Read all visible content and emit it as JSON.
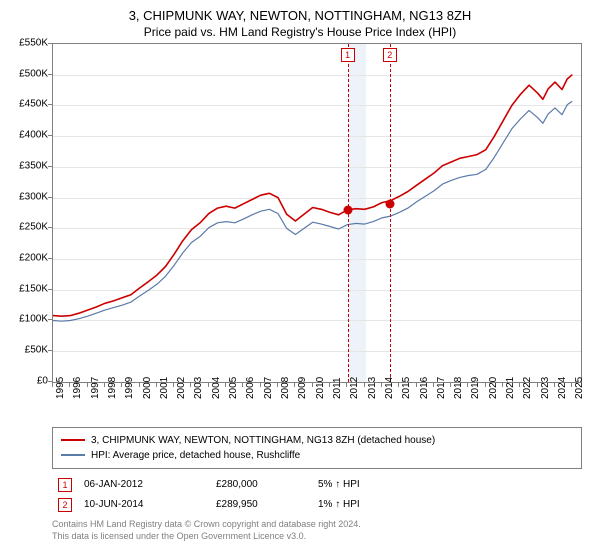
{
  "title": "3, CHIPMUNK WAY, NEWTON, NOTTINGHAM, NG13 8ZH",
  "subtitle": "Price paid vs. HM Land Registry's House Price Index (HPI)",
  "chart": {
    "type": "line",
    "background_color": "#ffffff",
    "grid_color": "#e6e6e6",
    "border_color": "#808080",
    "x": {
      "min": 1995,
      "max": 2025.5,
      "ticks": [
        1995,
        1996,
        1997,
        1998,
        1999,
        2000,
        2001,
        2002,
        2003,
        2004,
        2005,
        2006,
        2007,
        2008,
        2009,
        2010,
        2011,
        2012,
        2013,
        2014,
        2015,
        2016,
        2017,
        2018,
        2019,
        2020,
        2021,
        2022,
        2023,
        2024,
        2025
      ]
    },
    "y": {
      "min": 0,
      "max": 550000,
      "ticks": [
        0,
        50000,
        100000,
        150000,
        200000,
        250000,
        300000,
        350000,
        400000,
        450000,
        500000,
        550000
      ],
      "tick_labels": [
        "£0",
        "£50K",
        "£100K",
        "£150K",
        "£200K",
        "£250K",
        "£300K",
        "£350K",
        "£400K",
        "£450K",
        "£500K",
        "£550K"
      ]
    },
    "shaded_band": {
      "from": 2012.02,
      "to": 2013.1,
      "color": "#eef3fa"
    },
    "event_lines": [
      {
        "x": 2012.02,
        "label": "1",
        "color": "#cc0000"
      },
      {
        "x": 2014.45,
        "label": "2",
        "color": "#cc0000"
      }
    ],
    "markers": [
      {
        "x": 2012.02,
        "y": 280000,
        "color": "#cc0000"
      },
      {
        "x": 2014.45,
        "y": 289950,
        "color": "#cc0000"
      }
    ],
    "series": [
      {
        "name": "3, CHIPMUNK WAY, NEWTON, NOTTINGHAM, NG13 8ZH (detached house)",
        "color": "#cc0000",
        "width": 1.6,
        "points": [
          [
            1995,
            108000
          ],
          [
            1995.5,
            107000
          ],
          [
            1996,
            108000
          ],
          [
            1996.5,
            112000
          ],
          [
            1997,
            117000
          ],
          [
            1997.5,
            122000
          ],
          [
            1998,
            128000
          ],
          [
            1998.5,
            132000
          ],
          [
            1999,
            137000
          ],
          [
            1999.5,
            142000
          ],
          [
            2000,
            153000
          ],
          [
            2000.5,
            163000
          ],
          [
            2001,
            174000
          ],
          [
            2001.5,
            188000
          ],
          [
            2002,
            208000
          ],
          [
            2002.5,
            230000
          ],
          [
            2003,
            248000
          ],
          [
            2003.5,
            259000
          ],
          [
            2004,
            274000
          ],
          [
            2004.5,
            283000
          ],
          [
            2005,
            286000
          ],
          [
            2005.5,
            283000
          ],
          [
            2006,
            290000
          ],
          [
            2006.5,
            297000
          ],
          [
            2007,
            304000
          ],
          [
            2007.5,
            307000
          ],
          [
            2008,
            300000
          ],
          [
            2008.5,
            273000
          ],
          [
            2009,
            262000
          ],
          [
            2009.5,
            273000
          ],
          [
            2010,
            284000
          ],
          [
            2010.5,
            281000
          ],
          [
            2011,
            276000
          ],
          [
            2011.5,
            272000
          ],
          [
            2012,
            280000
          ],
          [
            2012.5,
            282000
          ],
          [
            2013,
            281000
          ],
          [
            2013.5,
            285000
          ],
          [
            2014,
            292000
          ],
          [
            2014.5,
            295000
          ],
          [
            2015,
            302000
          ],
          [
            2015.5,
            310000
          ],
          [
            2016,
            320000
          ],
          [
            2016.5,
            330000
          ],
          [
            2017,
            340000
          ],
          [
            2017.5,
            352000
          ],
          [
            2018,
            358000
          ],
          [
            2018.5,
            364000
          ],
          [
            2019,
            367000
          ],
          [
            2019.5,
            370000
          ],
          [
            2020,
            378000
          ],
          [
            2020.5,
            400000
          ],
          [
            2021,
            425000
          ],
          [
            2021.5,
            450000
          ],
          [
            2022,
            468000
          ],
          [
            2022.5,
            483000
          ],
          [
            2023,
            470000
          ],
          [
            2023.3,
            460000
          ],
          [
            2023.6,
            477000
          ],
          [
            2024,
            488000
          ],
          [
            2024.4,
            476000
          ],
          [
            2024.7,
            493000
          ],
          [
            2025,
            500000
          ]
        ]
      },
      {
        "name": "HPI: Average price, detached house, Rushcliffe",
        "color": "#5b7ba8",
        "width": 1.2,
        "points": [
          [
            1995,
            100000
          ],
          [
            1995.5,
            99000
          ],
          [
            1996,
            100000
          ],
          [
            1996.5,
            103000
          ],
          [
            1997,
            107000
          ],
          [
            1997.5,
            112000
          ],
          [
            1998,
            117000
          ],
          [
            1998.5,
            121000
          ],
          [
            1999,
            125000
          ],
          [
            1999.5,
            130000
          ],
          [
            2000,
            140000
          ],
          [
            2000.5,
            149000
          ],
          [
            2001,
            159000
          ],
          [
            2001.5,
            172000
          ],
          [
            2002,
            190000
          ],
          [
            2002.5,
            210000
          ],
          [
            2003,
            227000
          ],
          [
            2003.5,
            237000
          ],
          [
            2004,
            251000
          ],
          [
            2004.5,
            259000
          ],
          [
            2005,
            261000
          ],
          [
            2005.5,
            259000
          ],
          [
            2006,
            265000
          ],
          [
            2006.5,
            272000
          ],
          [
            2007,
            278000
          ],
          [
            2007.5,
            281000
          ],
          [
            2008,
            274000
          ],
          [
            2008.5,
            250000
          ],
          [
            2009,
            240000
          ],
          [
            2009.5,
            250000
          ],
          [
            2010,
            260000
          ],
          [
            2010.5,
            257000
          ],
          [
            2011,
            253000
          ],
          [
            2011.5,
            249000
          ],
          [
            2012,
            256000
          ],
          [
            2012.5,
            258000
          ],
          [
            2013,
            257000
          ],
          [
            2013.5,
            261000
          ],
          [
            2014,
            267000
          ],
          [
            2014.5,
            270000
          ],
          [
            2015,
            276000
          ],
          [
            2015.5,
            283000
          ],
          [
            2016,
            293000
          ],
          [
            2016.5,
            302000
          ],
          [
            2017,
            311000
          ],
          [
            2017.5,
            322000
          ],
          [
            2018,
            328000
          ],
          [
            2018.5,
            333000
          ],
          [
            2019,
            336000
          ],
          [
            2019.5,
            338000
          ],
          [
            2020,
            346000
          ],
          [
            2020.5,
            366000
          ],
          [
            2021,
            389000
          ],
          [
            2021.5,
            412000
          ],
          [
            2022,
            428000
          ],
          [
            2022.5,
            442000
          ],
          [
            2023,
            430000
          ],
          [
            2023.3,
            421000
          ],
          [
            2023.6,
            436000
          ],
          [
            2024,
            446000
          ],
          [
            2024.4,
            435000
          ],
          [
            2024.7,
            451000
          ],
          [
            2025,
            457000
          ]
        ]
      }
    ]
  },
  "legend": [
    {
      "color": "#cc0000",
      "label": "3, CHIPMUNK WAY, NEWTON, NOTTINGHAM, NG13 8ZH (detached house)"
    },
    {
      "color": "#5b7ba8",
      "label": "HPI: Average price, detached house, Rushcliffe"
    }
  ],
  "sales": [
    {
      "n": "1",
      "date": "06-JAN-2012",
      "price": "£280,000",
      "pct": "5% ↑ HPI"
    },
    {
      "n": "2",
      "date": "10-JUN-2014",
      "price": "£289,950",
      "pct": "1% ↑ HPI"
    }
  ],
  "attribution": {
    "line1": "Contains HM Land Registry data © Crown copyright and database right 2024.",
    "line2": "This data is licensed under the Open Government Licence v3.0."
  }
}
